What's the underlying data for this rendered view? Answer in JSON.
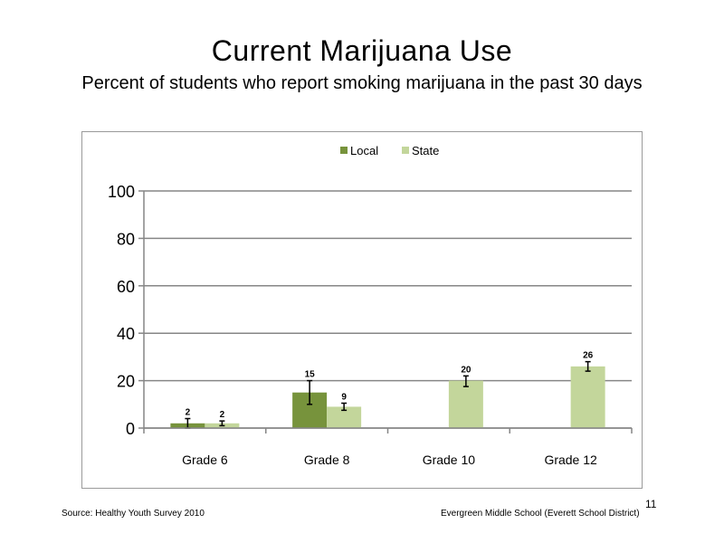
{
  "slide": {
    "page_number": "11",
    "source": "Source: Healthy Youth Survey 2010",
    "organization": "Evergreen Middle School (Everett School District)"
  },
  "colors": {
    "local": "#77933c",
    "state": "#c3d69b",
    "grid": "#868686",
    "error_bar": "#000000"
  },
  "chart_data": {
    "type": "bar",
    "title": "Current Marijuana Use",
    "subtitle": "Percent of students who report smoking marijuana in the past 30 days",
    "categories": [
      "Grade 6",
      "Grade 8",
      "Grade 10",
      "Grade 12"
    ],
    "series": [
      {
        "name": "Local",
        "values": [
          2,
          15,
          null,
          null
        ],
        "labels": [
          "2",
          "15",
          "",
          ""
        ],
        "error": [
          [
            0,
            4
          ],
          [
            10,
            20
          ],
          null,
          null
        ]
      },
      {
        "name": "State",
        "values": [
          2,
          9,
          20,
          26
        ],
        "labels": [
          "2",
          "9",
          "20",
          "26"
        ],
        "error": [
          [
            1,
            3
          ],
          [
            7.5,
            10.5
          ],
          [
            17.5,
            22
          ],
          [
            24,
            28
          ]
        ]
      }
    ],
    "ylim": [
      0,
      100
    ],
    "yticks": [
      "0",
      "20",
      "40",
      "60",
      "80",
      "100"
    ],
    "xlabel": "",
    "ylabel": "",
    "grid": true,
    "legend_position": "top"
  }
}
